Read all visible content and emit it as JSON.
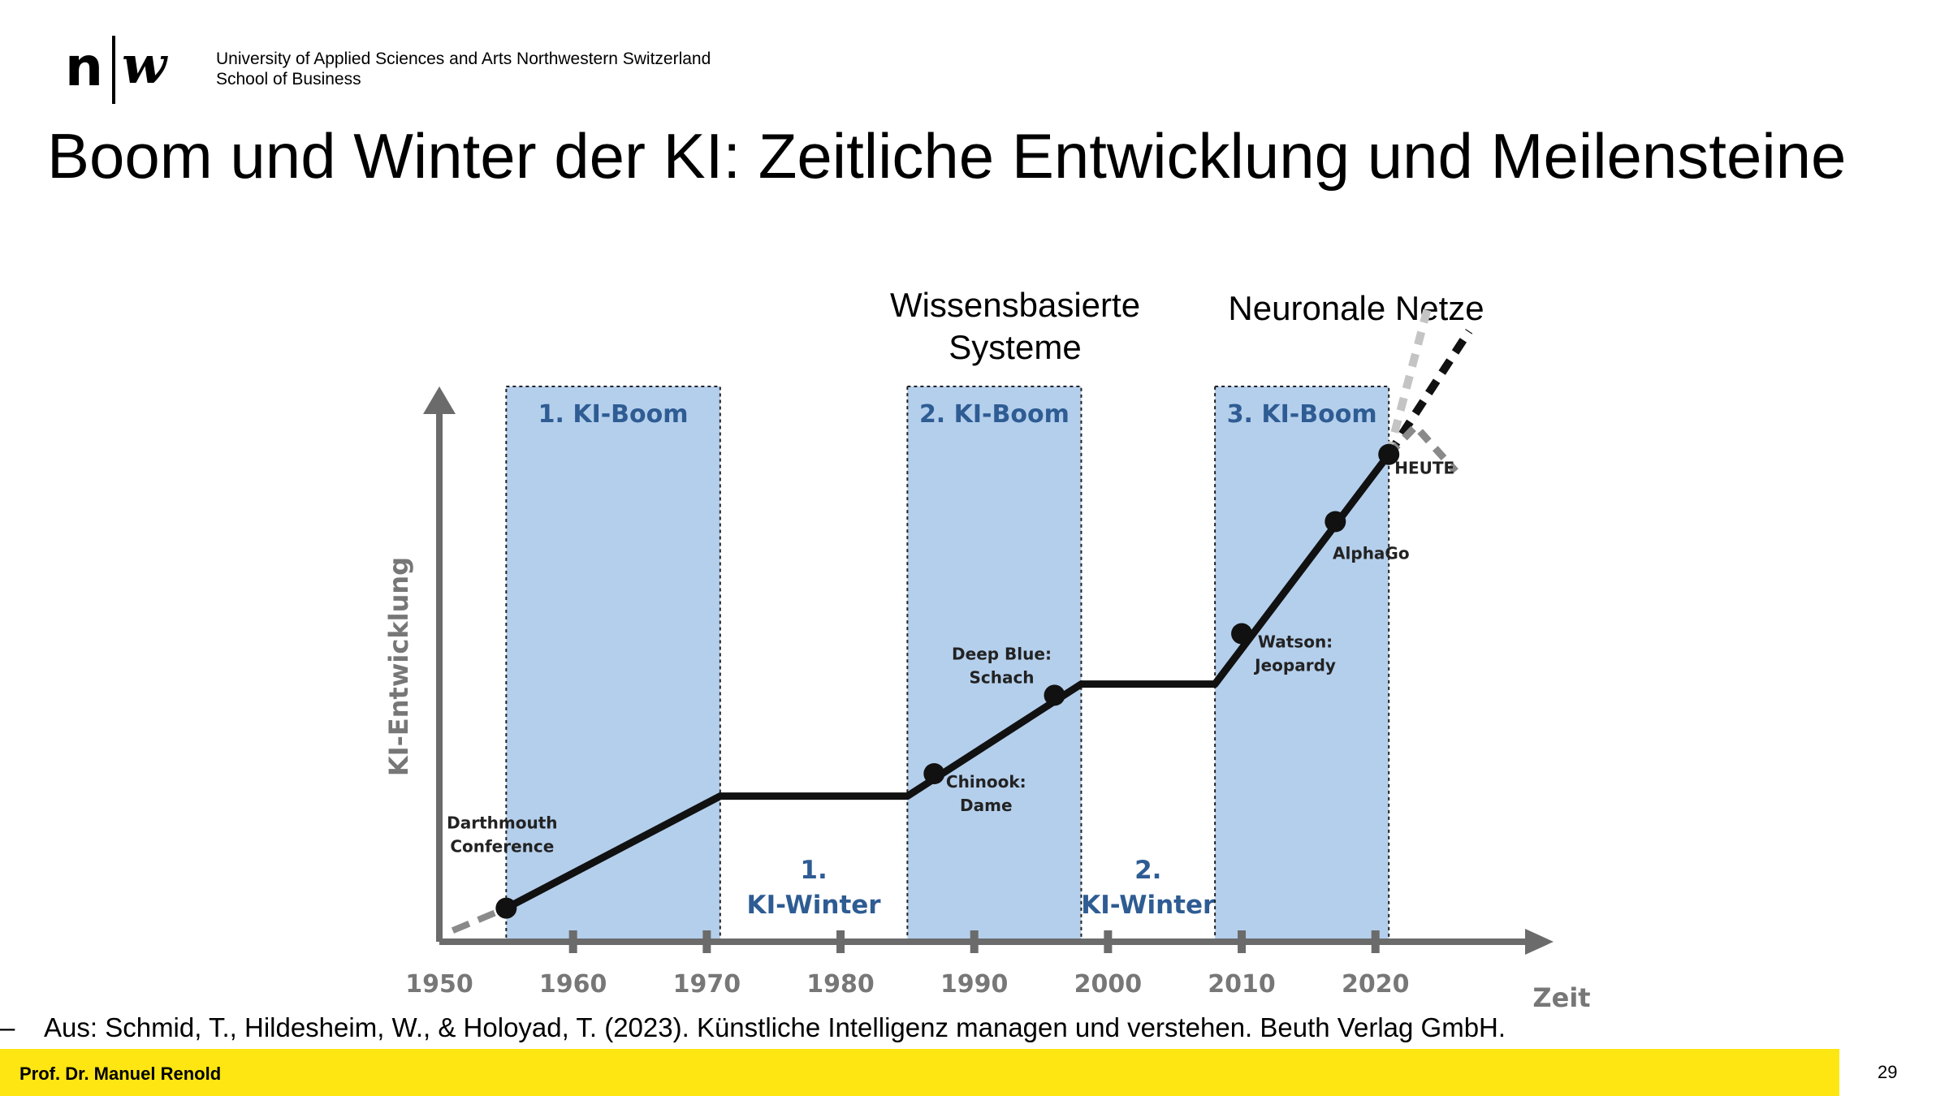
{
  "header": {
    "logo_n": "n",
    "logo_w": "w",
    "institution_line1": "University of Applied Sciences and Arts Northwestern Switzerland",
    "institution_line2": "School of Business"
  },
  "title": "Boom und Winter der KI: Zeitliche Entwicklung und Meilensteine",
  "headings": {
    "knowledge": "Wissensbasierte Systeme",
    "neural": "Neuronale Netze"
  },
  "chart_data": {
    "type": "line",
    "ylabel": "KI-Entwicklung",
    "xlabel": "Zeit",
    "x_ticks": [
      1950,
      1960,
      1970,
      1980,
      1990,
      2000,
      2010,
      2020
    ],
    "xlim": [
      1950,
      2027
    ],
    "ylim": [
      0,
      100
    ],
    "grid": false,
    "periods": [
      {
        "label": "1. KI-Boom",
        "kind": "boom",
        "start": 1955,
        "end": 1971
      },
      {
        "label": "1. KI-Winter",
        "kind": "winter",
        "start": 1971,
        "end": 1985
      },
      {
        "label": "2. KI-Boom",
        "kind": "boom",
        "start": 1985,
        "end": 1998
      },
      {
        "label": "2. KI-Winter",
        "kind": "winter",
        "start": 1998,
        "end": 2008
      },
      {
        "label": "3. KI-Boom",
        "kind": "boom",
        "start": 2008,
        "end": 2021
      }
    ],
    "series": [
      {
        "x": [
          1955,
          1971,
          1985,
          1998,
          2008,
          2021
        ],
        "y": [
          6,
          26,
          26,
          46,
          46,
          87
        ]
      }
    ],
    "milestones": [
      {
        "label": "Darthmouth Conference",
        "x": 1955,
        "y": 6
      },
      {
        "label": "Chinook: Dame",
        "x": 1987,
        "y": 30
      },
      {
        "label": "Deep Blue: Schach",
        "x": 1996,
        "y": 44
      },
      {
        "label": "Watson: Jeopardy",
        "x": 2010,
        "y": 55
      },
      {
        "label": "AlphaGo",
        "x": 2017,
        "y": 75
      },
      {
        "label": "HEUTE",
        "x": 2021,
        "y": 87
      }
    ],
    "before_trend": {
      "x": [
        1951,
        1955
      ],
      "y": [
        2,
        6
      ]
    },
    "future_trends": [
      {
        "style": "up",
        "x": [
          2021,
          2027
        ],
        "y": [
          87,
          109
        ]
      },
      {
        "style": "steep",
        "x": [
          2021,
          2024
        ],
        "y": [
          87,
          114
        ]
      },
      {
        "style": "curve",
        "x": [
          2021,
          2023,
          2026
        ],
        "y": [
          87,
          92,
          84
        ]
      }
    ],
    "colors": {
      "boom": "#b4cfec",
      "text_blue": "#2e5c93",
      "axis": "#6b6b6b",
      "line": "#111111",
      "dot": "#111111",
      "future_light": "#c4c4c4",
      "future_mid": "#8a8a8a"
    }
  },
  "source": {
    "dash": "–",
    "text": "Aus: Schmid, T., Hildesheim, W., & Holoyad, T. (2023). Künstliche Intelligenz managen und verstehen. Beuth Verlag GmbH."
  },
  "footer": {
    "author": "Prof. Dr. Manuel Renold",
    "page": "29"
  }
}
